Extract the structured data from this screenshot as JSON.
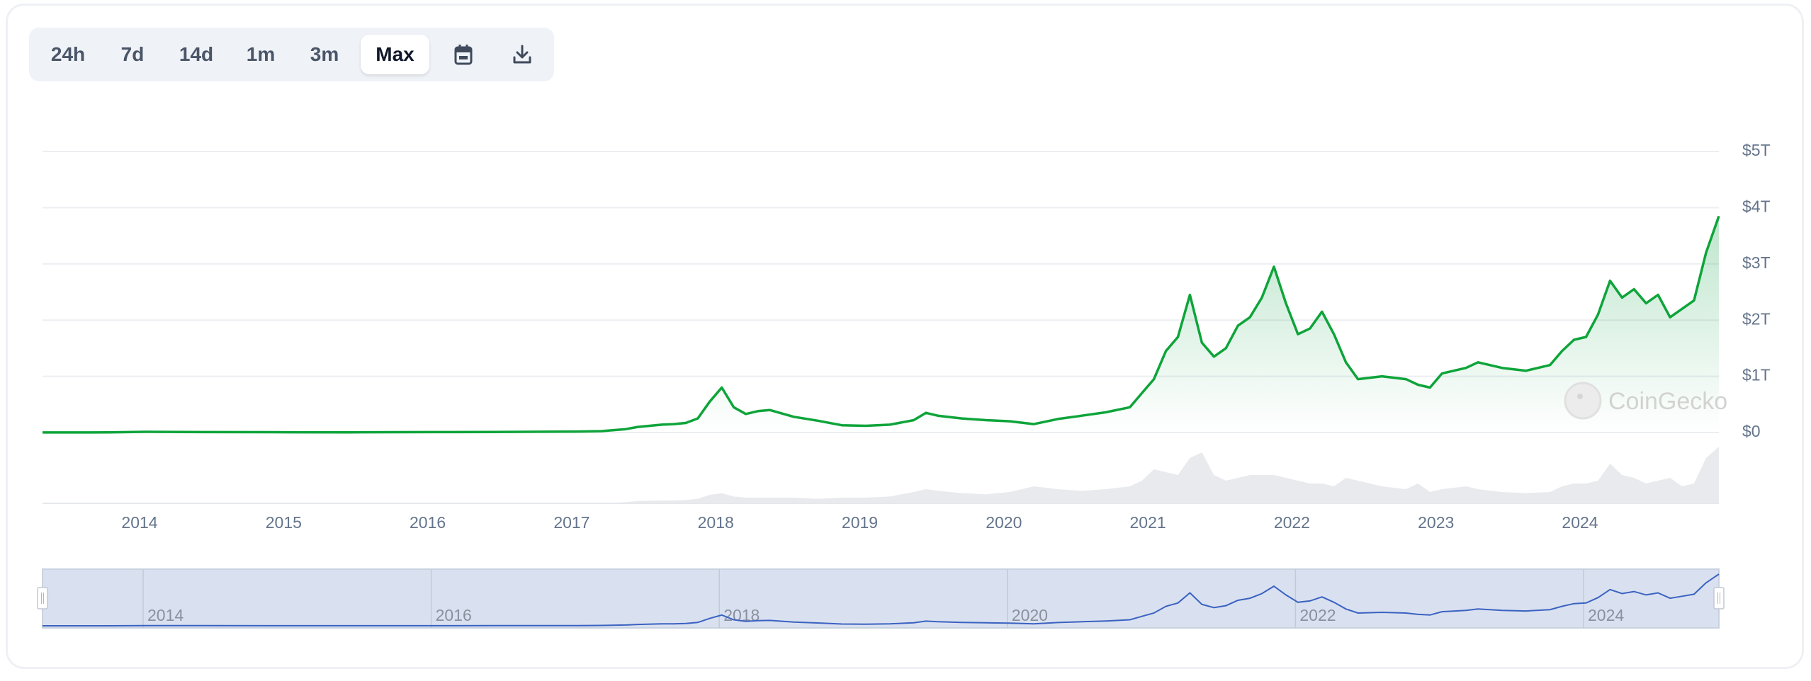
{
  "toolbar": {
    "ranges": [
      "24h",
      "7d",
      "14d",
      "1m",
      "3m",
      "Max"
    ],
    "active_range": "Max",
    "icons": [
      "calendar-icon",
      "download-icon"
    ]
  },
  "watermark": "CoinGecko",
  "colors": {
    "line": "#0ea43a",
    "navigator_line": "#3b62c1",
    "navigator_bg": "#d9e1f0",
    "axis_text": "#64748b"
  },
  "chart_data": {
    "type": "area",
    "title": "",
    "xlabel": "",
    "ylabel": "",
    "ylim": [
      0,
      5
    ],
    "y_unit": "trillion USD",
    "y_ticks": [
      "$0",
      "$1T",
      "$2T",
      "$3T",
      "$4T",
      "$5T"
    ],
    "x_ticks": [
      "2014",
      "2015",
      "2016",
      "2017",
      "2018",
      "2019",
      "2020",
      "2021",
      "2022",
      "2023",
      "2024"
    ],
    "navigator_ticks": [
      "2014",
      "2016",
      "2018",
      "2020",
      "2022",
      "2024"
    ],
    "xlim": [
      "2013-04",
      "2024-12"
    ],
    "grid": true,
    "series": [
      {
        "x": [
          "2013-04",
          "2013-10",
          "2014-01",
          "2014-06",
          "2015-01",
          "2015-06",
          "2016-01",
          "2016-06",
          "2017-01",
          "2017-03",
          "2017-05",
          "2017-06",
          "2017-08",
          "2017-09",
          "2017-10",
          "2017-11",
          "2017-12",
          "2018-01",
          "2018-02",
          "2018-03",
          "2018-04",
          "2018-05",
          "2018-07",
          "2018-09",
          "2018-11",
          "2019-01",
          "2019-03",
          "2019-05",
          "2019-06",
          "2019-07",
          "2019-09",
          "2019-11",
          "2020-01",
          "2020-03",
          "2020-05",
          "2020-07",
          "2020-09",
          "2020-11",
          "2020-12",
          "2021-01",
          "2021-02",
          "2021-03",
          "2021-04",
          "2021-05",
          "2021-06",
          "2021-07",
          "2021-08",
          "2021-09",
          "2021-10",
          "2021-11",
          "2021-12",
          "2022-01",
          "2022-02",
          "2022-03",
          "2022-04",
          "2022-05",
          "2022-06",
          "2022-08",
          "2022-10",
          "2022-11",
          "2022-12",
          "2023-01",
          "2023-03",
          "2023-04",
          "2023-06",
          "2023-08",
          "2023-10",
          "2023-11",
          "2023-12",
          "2024-01",
          "2024-02",
          "2024-03",
          "2024-04",
          "2024-05",
          "2024-06",
          "2024-07",
          "2024-08",
          "2024-09",
          "2024-10",
          "2024-11",
          "2024-12"
        ],
        "y": [
          0.0015,
          0.002,
          0.012,
          0.008,
          0.005,
          0.004,
          0.007,
          0.01,
          0.018,
          0.025,
          0.06,
          0.1,
          0.14,
          0.15,
          0.17,
          0.25,
          0.55,
          0.8,
          0.45,
          0.33,
          0.38,
          0.4,
          0.28,
          0.21,
          0.13,
          0.12,
          0.14,
          0.22,
          0.35,
          0.3,
          0.25,
          0.22,
          0.2,
          0.15,
          0.24,
          0.3,
          0.36,
          0.45,
          0.7,
          0.95,
          1.45,
          1.7,
          2.45,
          1.6,
          1.35,
          1.5,
          1.9,
          2.05,
          2.4,
          2.95,
          2.3,
          1.75,
          1.85,
          2.15,
          1.75,
          1.25,
          0.95,
          1.0,
          0.95,
          0.85,
          0.8,
          1.05,
          1.15,
          1.25,
          1.15,
          1.1,
          1.2,
          1.45,
          1.65,
          1.7,
          2.1,
          2.7,
          2.4,
          2.55,
          2.3,
          2.45,
          2.05,
          2.2,
          2.35,
          3.2,
          3.85
        ]
      }
    ],
    "volume_relative": [
      0,
      0,
      0,
      0,
      0,
      0,
      0,
      0,
      0,
      0,
      0.02,
      0.04,
      0.05,
      0.05,
      0.06,
      0.08,
      0.15,
      0.18,
      0.12,
      0.1,
      0.1,
      0.1,
      0.1,
      0.08,
      0.1,
      0.1,
      0.12,
      0.2,
      0.25,
      0.22,
      0.18,
      0.16,
      0.2,
      0.3,
      0.25,
      0.22,
      0.25,
      0.3,
      0.4,
      0.6,
      0.55,
      0.5,
      0.8,
      0.9,
      0.5,
      0.4,
      0.45,
      0.5,
      0.5,
      0.5,
      0.45,
      0.4,
      0.35,
      0.35,
      0.3,
      0.45,
      0.4,
      0.3,
      0.25,
      0.35,
      0.2,
      0.25,
      0.3,
      0.25,
      0.2,
      0.18,
      0.2,
      0.3,
      0.35,
      0.35,
      0.4,
      0.7,
      0.5,
      0.45,
      0.35,
      0.4,
      0.45,
      0.3,
      0.35,
      0.8,
      1.0
    ]
  }
}
